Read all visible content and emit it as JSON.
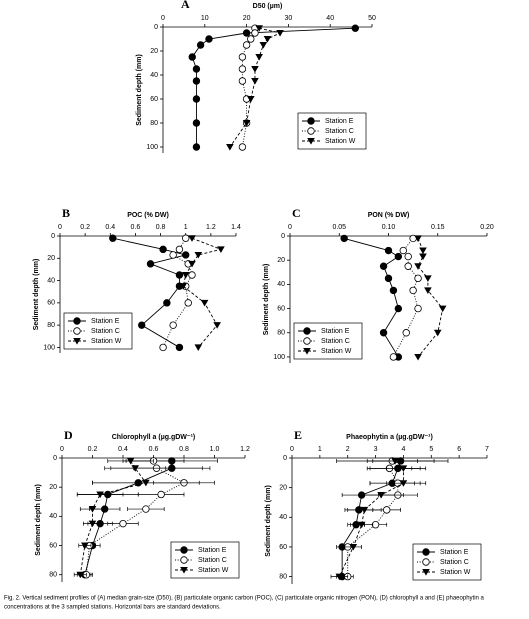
{
  "chart_data": [
    {
      "type": "line",
      "panel": "A",
      "title": "D50 (µm)",
      "ylabel": "Sediment depth (mm)",
      "x_axis": "top",
      "y_inverted": true,
      "legend": "lower right",
      "xlim": [
        0,
        50
      ],
      "xticks": [
        0,
        10,
        20,
        30,
        40,
        50
      ],
      "ylim": [
        0,
        105
      ],
      "yticks": [
        0,
        20,
        40,
        60,
        80,
        100
      ],
      "depths": [
        1,
        5,
        10,
        15,
        25,
        35,
        45,
        60,
        80,
        100
      ],
      "series": [
        {
          "name": "Station E",
          "color": "#000000",
          "marker": "filled-circle",
          "line": "solid",
          "values": [
            46,
            20,
            11,
            9,
            7,
            8,
            8,
            8,
            8,
            8
          ]
        },
        {
          "name": "Station C",
          "color": "#000000",
          "marker": "open-circle",
          "line": "dotted",
          "values": [
            22,
            22,
            21,
            20,
            19,
            19,
            19,
            20,
            20,
            19
          ]
        },
        {
          "name": "Station W",
          "color": "#000000",
          "marker": "triangle-down",
          "line": "dashed",
          "values": [
            23,
            28,
            25,
            24,
            23,
            22,
            22,
            21,
            20,
            16
          ]
        }
      ]
    },
    {
      "type": "line",
      "panel": "B",
      "title": "POC (% DW)",
      "ylabel": "Sediment depth (mm)",
      "x_axis": "top",
      "y_inverted": true,
      "legend": "lower left",
      "xlim": [
        0,
        1.4
      ],
      "xticks": [
        0,
        0.2,
        0.4,
        0.6,
        0.8,
        1,
        1.2,
        1.4
      ],
      "ylim": [
        0,
        105
      ],
      "yticks": [
        0,
        20,
        40,
        60,
        80,
        100
      ],
      "depths": [
        2,
        12,
        17,
        25,
        35,
        45,
        60,
        80,
        100
      ],
      "series": [
        {
          "name": "Station E",
          "color": "#000000",
          "marker": "filled-circle",
          "line": "solid",
          "values": [
            0.42,
            0.82,
            1.0,
            0.72,
            0.95,
            0.95,
            0.85,
            0.65,
            0.95
          ]
        },
        {
          "name": "Station C",
          "color": "#000000",
          "marker": "open-circle",
          "line": "dotted",
          "values": [
            1.0,
            0.95,
            0.9,
            1.02,
            1.05,
            1.0,
            1.02,
            0.9,
            0.82
          ]
        },
        {
          "name": "Station W",
          "color": "#000000",
          "marker": "triangle-down",
          "line": "dashed",
          "values": [
            1.05,
            1.28,
            1.1,
            1.05,
            1.0,
            0.98,
            1.15,
            1.25,
            1.1
          ]
        }
      ]
    },
    {
      "type": "line",
      "panel": "C",
      "title": "PON (% DW)",
      "ylabel": "Sediment depth (mm)",
      "x_axis": "top",
      "y_inverted": true,
      "legend": "lower left",
      "xlim": [
        0,
        0.2
      ],
      "xticks": [
        0,
        0.05,
        {
          "value": 0.1,
          "label": "0.10"
        },
        0.15,
        {
          "value": 0.2,
          "label": "0.20"
        }
      ],
      "ylim": [
        0,
        105
      ],
      "yticks": [
        0,
        20,
        40,
        60,
        80,
        100
      ],
      "depths": [
        2,
        12,
        17,
        25,
        35,
        45,
        60,
        80,
        100
      ],
      "series": [
        {
          "name": "Station E",
          "color": "#000000",
          "marker": "filled-circle",
          "line": "solid",
          "values": [
            0.055,
            0.1,
            0.11,
            0.095,
            0.1,
            0.105,
            0.11,
            0.095,
            0.11
          ]
        },
        {
          "name": "Station C",
          "color": "#000000",
          "marker": "open-circle",
          "line": "dotted",
          "values": [
            0.125,
            0.115,
            0.12,
            0.12,
            0.13,
            0.125,
            0.13,
            0.118,
            0.105
          ]
        },
        {
          "name": "Station W",
          "color": "#000000",
          "marker": "triangle-down",
          "line": "dashed",
          "values": [
            0.13,
            0.135,
            0.135,
            0.13,
            0.14,
            0.14,
            0.155,
            0.15,
            0.13
          ]
        }
      ]
    },
    {
      "type": "line",
      "panel": "D",
      "title": "Chlorophyll a (µg.gDW⁻¹)",
      "ylabel": "Sediment depth (mm)",
      "x_axis": "top",
      "y_inverted": true,
      "legend": "lower right",
      "xlim": [
        0,
        1.2
      ],
      "xticks": [
        0,
        0.2,
        0.4,
        0.6,
        0.8,
        {
          "value": 1,
          "label": "1.0"
        },
        1.2
      ],
      "ylim": [
        0,
        85
      ],
      "yticks": [
        0,
        20,
        40,
        60,
        80
      ],
      "depths": [
        2,
        7,
        17,
        25,
        35,
        45,
        60,
        80
      ],
      "series": [
        {
          "name": "Station E",
          "color": "#000000",
          "marker": "filled-circle",
          "line": "solid",
          "values": [
            0.72,
            0.72,
            0.5,
            0.3,
            0.28,
            0.25,
            0.2,
            0.15
          ],
          "errors": [
            0.3,
            0.25,
            0.3,
            0.2,
            0.1,
            0.08,
            0.05,
            0.05
          ]
        },
        {
          "name": "Station C",
          "color": "#000000",
          "marker": "open-circle",
          "line": "dotted",
          "values": [
            0.6,
            0.62,
            0.8,
            0.65,
            0.55,
            0.4,
            0.18,
            0.16
          ],
          "errors": [
            0.2,
            0.3,
            0.2,
            0.15,
            0.12,
            0.1,
            0.04,
            0.03
          ]
        },
        {
          "name": "Station W",
          "color": "#000000",
          "marker": "triangle-down",
          "line": "dashed",
          "values": [
            0.45,
            0.48,
            0.55,
            0.25,
            0.2,
            0.2,
            0.15,
            0.12
          ],
          "errors": [
            0.15,
            0.2,
            0.35,
            0.15,
            0.08,
            0.06,
            0.04,
            0.04
          ]
        }
      ]
    },
    {
      "type": "line",
      "panel": "E",
      "title": "Phaeophytin a (µg.gDW⁻¹)",
      "ylabel": "Sediment depth (mm)",
      "x_axis": "top",
      "y_inverted": true,
      "legend": "lower right",
      "xlim": [
        0,
        7
      ],
      "xticks": [
        0,
        1,
        2,
        3,
        4,
        5,
        6,
        7
      ],
      "ylim": [
        0,
        85
      ],
      "yticks": [
        0,
        20,
        40,
        60,
        80
      ],
      "depths": [
        2,
        7,
        17,
        25,
        35,
        45,
        60,
        80
      ],
      "series": [
        {
          "name": "Station E",
          "color": "#000000",
          "marker": "filled-circle",
          "line": "solid",
          "values": [
            3.9,
            3.8,
            3.6,
            2.5,
            2.4,
            2.3,
            1.8,
            1.8
          ],
          "errors": [
            1.2,
            1.0,
            0.8,
            0.7,
            0.5,
            0.3,
            0.2,
            0.2
          ]
        },
        {
          "name": "Station C",
          "color": "#000000",
          "marker": "open-circle",
          "line": "dotted",
          "values": [
            3.6,
            3.5,
            3.8,
            3.8,
            3.4,
            3.0,
            2.0,
            2.0
          ],
          "errors": [
            2.0,
            0.8,
            1.0,
            0.7,
            0.5,
            0.4,
            0.2,
            0.2
          ]
        },
        {
          "name": "Station W",
          "color": "#000000",
          "marker": "triangle-down",
          "line": "dashed",
          "values": [
            3.7,
            4.0,
            4.0,
            3.2,
            2.6,
            2.5,
            2.2,
            1.7
          ],
          "errors": [
            0.8,
            0.6,
            0.6,
            0.8,
            0.6,
            0.4,
            0.3,
            0.3
          ]
        }
      ]
    }
  ],
  "caption": [
    "Fig. 2.  Vertical sediment profiles of (A) median grain-size (D50), (B) particulate organic carbon (POC), (C) particulate organic nitrogen (PON), (D) chlorophyll a and (E) phaeophytin a",
    "concentrations at the 3 sampled stations. Horizontal bars are standard deviations."
  ]
}
